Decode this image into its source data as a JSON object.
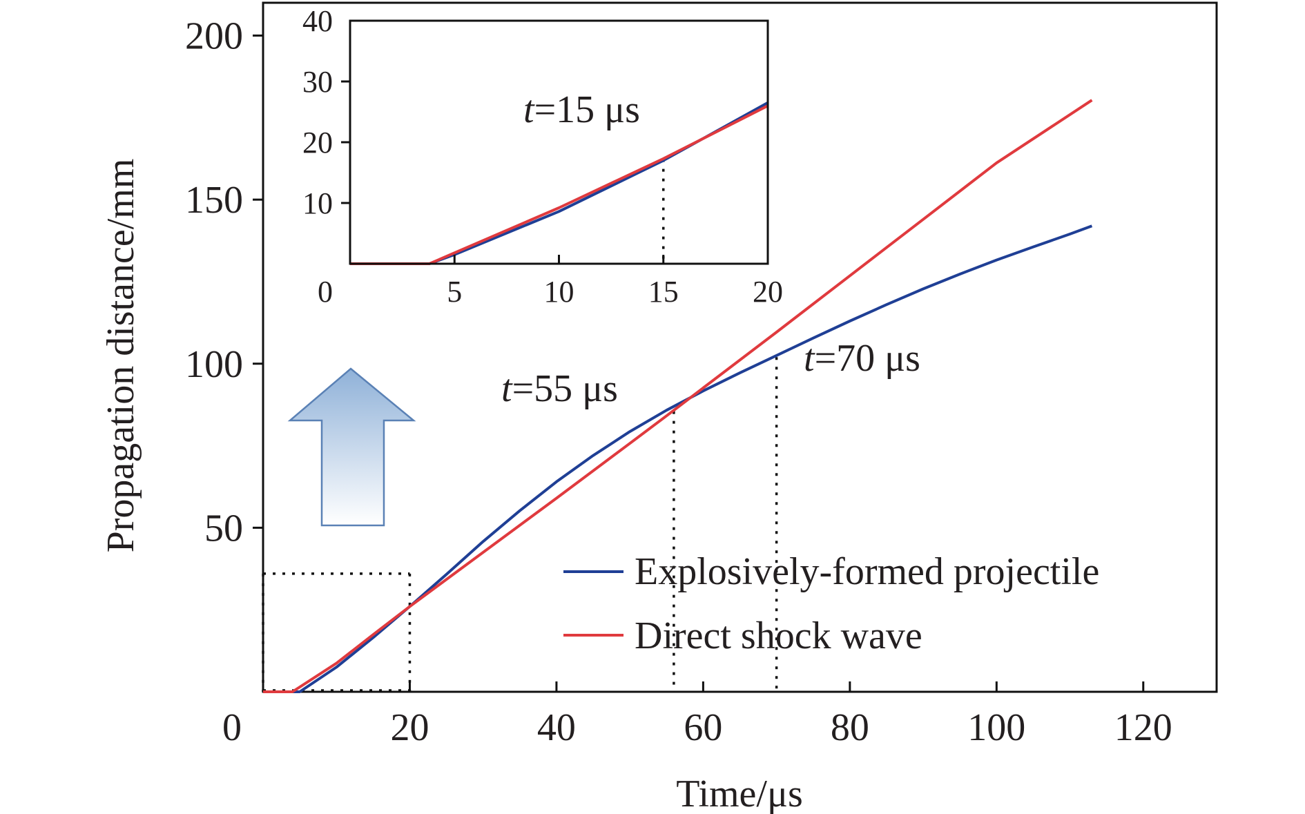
{
  "chart_data": [
    {
      "type": "line",
      "xlabel": "Time/μs",
      "ylabel": "Propagation distance/mm",
      "xlim": [
        0,
        130
      ],
      "ylim": [
        0,
        210
      ],
      "x_ticks": [
        0,
        20,
        40,
        60,
        80,
        100,
        120
      ],
      "y_ticks": [
        50,
        100,
        150,
        200
      ],
      "legend_position": "bottom-right",
      "grid": false,
      "series": [
        {
          "name": "Explosively-formed projectile",
          "color": "#1f3f95",
          "x": [
            0,
            5,
            10,
            15,
            20,
            25,
            30,
            35,
            40,
            45,
            50,
            55,
            60,
            65,
            70,
            75,
            80,
            85,
            90,
            95,
            100,
            105,
            110,
            113
          ],
          "y": [
            0,
            0,
            7.5,
            16.5,
            26,
            35.8,
            45.8,
            55.2,
            64,
            72,
            79.3,
            85.8,
            91.7,
            97.2,
            102.5,
            107.8,
            113,
            118,
            122.8,
            127.3,
            131.6,
            135.6,
            139.5,
            142
          ]
        },
        {
          "name": "Direct shock wave",
          "color": "#e03a3e",
          "x": [
            0,
            4,
            10,
            15,
            20,
            30,
            40,
            50,
            55,
            60,
            70,
            80,
            90,
            100,
            113
          ],
          "y": [
            0,
            0,
            8.7,
            17.4,
            26,
            42.5,
            59,
            75.7,
            84.1,
            92.6,
            109.6,
            126.8,
            144,
            161.2,
            180.3
          ]
        }
      ],
      "annotations": [
        {
          "t": "t",
          "rest": "=55 μs"
        },
        {
          "t": "t",
          "rest": "=70 μs"
        }
      ],
      "reference_lines": {
        "vertical": [
          20,
          56,
          70
        ],
        "horizontal": [
          36
        ]
      }
    },
    {
      "type": "line",
      "xlim": [
        0,
        20
      ],
      "ylim": [
        0,
        40
      ],
      "x_ticks": [
        0,
        5,
        10,
        15,
        20
      ],
      "y_ticks": [
        10,
        20,
        30,
        40
      ],
      "grid": false,
      "series": [
        {
          "name": "Explosively-formed projectile",
          "color": "#1f3f95",
          "x": [
            0,
            3.8,
            5,
            10,
            15,
            20
          ],
          "y": [
            0,
            0,
            1.5,
            8.6,
            17,
            26.5
          ]
        },
        {
          "name": "Direct shock wave",
          "color": "#e03a3e",
          "x": [
            0,
            3.8,
            5,
            10,
            15,
            20
          ],
          "y": [
            0,
            0,
            1.8,
            9.2,
            17.3,
            26
          ]
        }
      ],
      "annotations": [
        {
          "t": "t",
          "rest": "=15 μs"
        }
      ],
      "reference_lines": {
        "vertical": [
          15
        ]
      }
    }
  ]
}
